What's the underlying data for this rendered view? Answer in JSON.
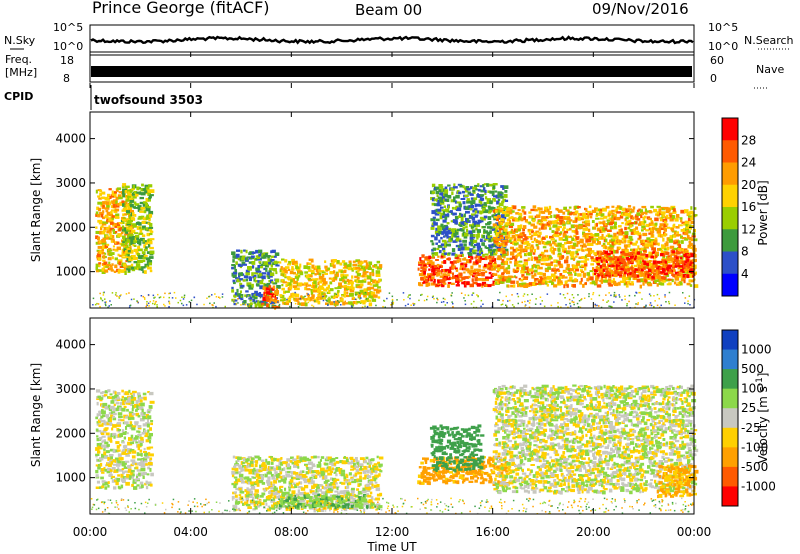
{
  "header": {
    "title": "Prince George (fitACF)",
    "beam": "Beam 00",
    "date": "09/Nov/2016"
  },
  "panels": {
    "nsky_label": "N.Sky",
    "nsearch_label": "N.Search",
    "nsky_ticks": [
      "10^5",
      "10^0"
    ],
    "nsearch_ticks": [
      "10^5",
      "10^0"
    ],
    "freq_label": "Freq.",
    "freq_unit": "[MHz]",
    "freq_ticks": [
      "18",
      "8"
    ],
    "nave_label": "Nave",
    "nave_ticks": [
      "60",
      "0"
    ],
    "cpid_label": "CPID",
    "cpid_value": "twofsound 3503"
  },
  "chart_data": [
    {
      "type": "heatmap",
      "title": "",
      "xlabel": "",
      "ylabel": "Slant Range [km]",
      "xlim": [
        "00:00",
        "24:00"
      ],
      "ylim": [
        180,
        4600
      ],
      "yticks": [
        1000,
        2000,
        3000,
        4000
      ],
      "colorbar": {
        "label": "Power [dB]",
        "ticks": [
          "28",
          "24",
          "20",
          "16",
          "12",
          "8",
          "4"
        ],
        "colors": [
          "#ff0000",
          "#ff5a00",
          "#ff9c00",
          "#ffd200",
          "#9ace00",
          "#3d9a3d",
          "#2d50c8",
          "#0000ff"
        ]
      },
      "regions": [
        {
          "t": [
            0.2,
            1.6
          ],
          "range": [
            1000,
            2900
          ],
          "power_db": 20
        },
        {
          "t": [
            1.2,
            2.4
          ],
          "range": [
            1000,
            3000
          ],
          "power_db": 14
        },
        {
          "t": [
            5.6,
            7.4
          ],
          "range": [
            250,
            1500
          ],
          "power_db": 10
        },
        {
          "t": [
            6.8,
            7.4
          ],
          "range": [
            200,
            700
          ],
          "power_db": 26
        },
        {
          "t": [
            7.5,
            11.5
          ],
          "range": [
            300,
            1300
          ],
          "power_db": 18
        },
        {
          "t": [
            13.0,
            16.0
          ],
          "range": [
            700,
            1400
          ],
          "power_db": 26
        },
        {
          "t": [
            13.5,
            16.5
          ],
          "range": [
            1400,
            3000
          ],
          "power_db": 10
        },
        {
          "t": [
            16.0,
            24.0
          ],
          "range": [
            700,
            2500
          ],
          "power_db": 20
        },
        {
          "t": [
            20.0,
            24.0
          ],
          "range": [
            900,
            1500
          ],
          "power_db": 26
        }
      ]
    },
    {
      "type": "heatmap",
      "title": "",
      "xlabel": "Time UT",
      "ylabel": "Slant Range [km]",
      "xlim": [
        "00:00",
        "24:00"
      ],
      "ylim": [
        180,
        4600
      ],
      "yticks": [
        1000,
        2000,
        3000,
        4000
      ],
      "xticks": [
        "00:00",
        "04:00",
        "08:00",
        "12:00",
        "16:00",
        "20:00",
        "00:00"
      ],
      "colorbar": {
        "label": "Velocity [m s-1]",
        "ticks": [
          "1000",
          "500",
          "100",
          "25",
          "-25",
          "-100",
          "-500",
          "-1000"
        ],
        "colors": [
          "#1040c0",
          "#2f7fd0",
          "#3ea04a",
          "#8cd84a",
          "#c8c8c0",
          "#ffd000",
          "#ffa000",
          "#ff5a00",
          "#ff0000"
        ]
      },
      "regions": [
        {
          "t": [
            0.2,
            2.4
          ],
          "range": [
            800,
            3000
          ],
          "velocity": 0
        },
        {
          "t": [
            5.6,
            11.5
          ],
          "range": [
            300,
            1500
          ],
          "velocity": 0
        },
        {
          "t": [
            7.5,
            11.0
          ],
          "range": [
            350,
            650
          ],
          "velocity": 80
        },
        {
          "t": [
            13.0,
            16.5
          ],
          "range": [
            900,
            1500
          ],
          "velocity": -150
        },
        {
          "t": [
            13.5,
            15.5
          ],
          "range": [
            1200,
            2200
          ],
          "velocity": 400
        },
        {
          "t": [
            16.0,
            24.0
          ],
          "range": [
            700,
            3100
          ],
          "velocity": 0
        },
        {
          "t": [
            22.5,
            24.0
          ],
          "range": [
            600,
            1300
          ],
          "velocity": -120
        }
      ]
    }
  ]
}
